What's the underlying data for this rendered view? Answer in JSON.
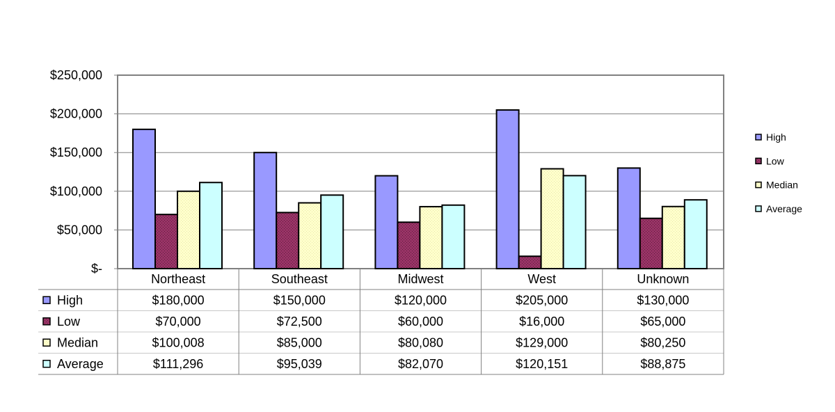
{
  "chart_data": {
    "type": "bar",
    "categories": [
      "Northeast",
      "Southeast",
      "Midwest",
      "West",
      "Unknown"
    ],
    "series": [
      {
        "name": "High",
        "values": [
          180000,
          150000,
          120000,
          205000,
          130000
        ],
        "color": "#9999ff",
        "labels": [
          "$180,000",
          "$150,000",
          "$120,000",
          "$205,000",
          "$130,000"
        ]
      },
      {
        "name": "Low",
        "values": [
          70000,
          72500,
          60000,
          16000,
          65000
        ],
        "color": "#993366",
        "labels": [
          "$70,000",
          "$72,500",
          "$60,000",
          "$16,000",
          "$65,000"
        ]
      },
      {
        "name": "Median",
        "values": [
          100008,
          85000,
          80080,
          129000,
          80250
        ],
        "color": "#ffffcc",
        "labels": [
          "$100,008",
          "$85,000",
          "$80,080",
          "$129,000",
          "$80,250"
        ]
      },
      {
        "name": "Average",
        "values": [
          111296,
          95039,
          82070,
          120151,
          88875
        ],
        "color": "#ccffff",
        "labels": [
          "$111,296",
          "$95,039",
          "$82,070",
          "$120,151",
          "$88,875"
        ]
      }
    ],
    "ylim": [
      0,
      250000
    ],
    "yticks": [
      0,
      50000,
      100000,
      150000,
      200000,
      250000
    ],
    "ytick_labels": [
      "$-",
      "$50,000",
      "$100,000",
      "$150,000",
      "$200,000",
      "$250,000"
    ],
    "grid": true,
    "legend": "right",
    "data_table": true
  }
}
